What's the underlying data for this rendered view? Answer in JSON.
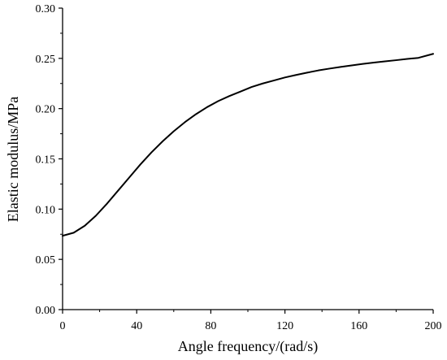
{
  "chart_data": {
    "type": "line",
    "title": "",
    "xlabel": "Angle frequency/(rad/s)",
    "ylabel": "Elastic modulus/MPa",
    "xlim": [
      0,
      200
    ],
    "ylim": [
      0.0,
      0.3
    ],
    "x_ticks": [
      "0",
      "40",
      "80",
      "120",
      "160",
      "200"
    ],
    "y_ticks": [
      "0.00",
      "0.05",
      "0.10",
      "0.15",
      "0.20",
      "0.25",
      "0.30"
    ],
    "grid": false,
    "legend": "none",
    "series": [
      {
        "color": "#000000",
        "x": [
          0,
          6,
          12,
          18,
          24,
          30,
          36,
          42,
          48,
          54,
          60,
          66,
          72,
          78,
          84,
          90,
          96,
          102,
          108,
          114,
          120,
          126,
          132,
          138,
          144,
          150,
          156,
          162,
          168,
          174,
          180,
          186,
          192,
          200
        ],
        "y": [
          0.0735,
          0.0765,
          0.0835,
          0.0935,
          0.1055,
          0.1185,
          0.1315,
          0.1445,
          0.1565,
          0.1675,
          0.1775,
          0.1865,
          0.1945,
          0.2015,
          0.2075,
          0.2125,
          0.217,
          0.2215,
          0.225,
          0.228,
          0.231,
          0.2335,
          0.2358,
          0.238,
          0.2398,
          0.2415,
          0.243,
          0.2445,
          0.2458,
          0.247,
          0.2482,
          0.2495,
          0.2505,
          0.2545
        ]
      }
    ]
  }
}
